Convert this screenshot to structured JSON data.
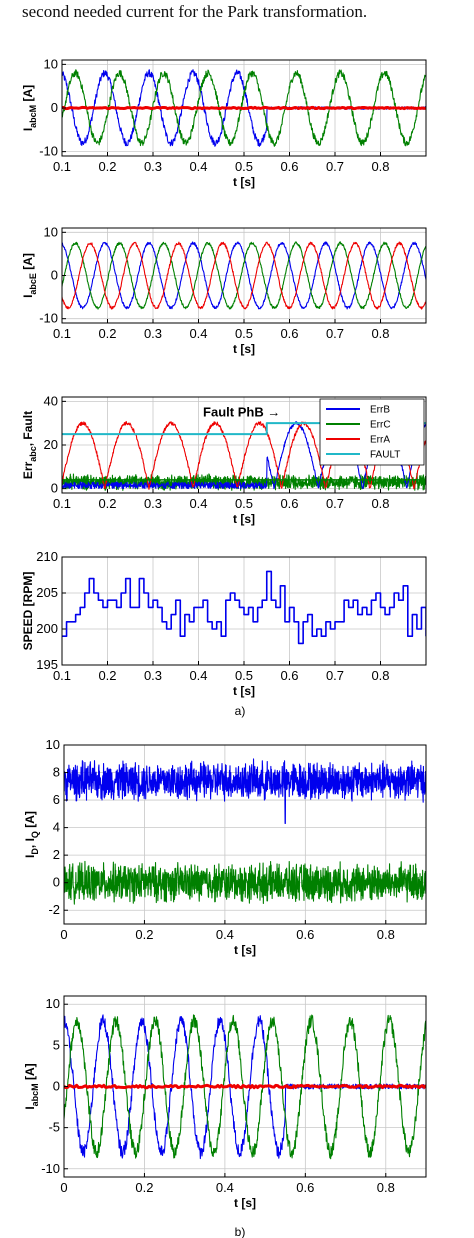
{
  "caption_top": "second needed current for the Park transformation.",
  "chart_data": [
    {
      "type": "line",
      "id": "p1",
      "ylabel": "I",
      "ylabel_sub": "abcM",
      "ylabel_unit": " [A]",
      "xlabel": "t [s]",
      "xlim": [
        0.1,
        0.9
      ],
      "ylim": [
        -11,
        11
      ],
      "xticks": [
        0.1,
        0.2,
        0.3,
        0.4,
        0.5,
        0.6,
        0.7,
        0.8
      ],
      "xticklabels": [
        "0.1",
        "0.2",
        "0.3",
        "0.4",
        "0.5",
        "0.6",
        "0.7",
        "0.8"
      ],
      "yticks": [
        -10,
        0,
        10
      ],
      "yticklabels": [
        "-10",
        "0",
        "10"
      ],
      "grid": true,
      "series": [
        {
          "color": "#0000ee",
          "kind": "sine",
          "amp": 8,
          "freq": 10.3,
          "phase": 90,
          "noise": 0.8,
          "until": 0.55,
          "after": 0
        },
        {
          "color": "#008000",
          "kind": "sine",
          "amp": 8,
          "freq": 10.3,
          "phase": -30,
          "noise": 0.8
        },
        {
          "color": "#ee0000",
          "kind": "const",
          "value": 0,
          "width": 3
        }
      ]
    },
    {
      "type": "line",
      "id": "p2",
      "ylabel": "I",
      "ylabel_sub": "abcE",
      "ylabel_unit": " [A]",
      "xlabel": "t [s]",
      "xlim": [
        0.1,
        0.9
      ],
      "ylim": [
        -11,
        11
      ],
      "xticks": [
        0.1,
        0.2,
        0.3,
        0.4,
        0.5,
        0.6,
        0.7,
        0.8
      ],
      "xticklabels": [
        "0.1",
        "0.2",
        "0.3",
        "0.4",
        "0.5",
        "0.6",
        "0.7",
        "0.8"
      ],
      "yticks": [
        -10,
        0,
        10
      ],
      "yticklabels": [
        "-10",
        "0",
        "10"
      ],
      "grid": true,
      "series": [
        {
          "color": "#0000ee",
          "kind": "sine",
          "amp": 7.5,
          "freq": 10.3,
          "phase": 90,
          "noise": 0.3
        },
        {
          "color": "#008000",
          "kind": "sine",
          "amp": 7.5,
          "freq": 10.3,
          "phase": -30,
          "noise": 0.3
        },
        {
          "color": "#ee0000",
          "kind": "sine",
          "amp": 7.5,
          "freq": 10.3,
          "phase": 210,
          "noise": 0.3
        }
      ]
    },
    {
      "type": "line",
      "id": "p3",
      "ylabel": "Err",
      "ylabel_sub": "abc",
      "ylabel_unit": ", Fault",
      "xlabel": "t [s]",
      "xlim": [
        0.1,
        0.9
      ],
      "ylim": [
        -2,
        42
      ],
      "xticks": [
        0.1,
        0.2,
        0.3,
        0.4,
        0.5,
        0.6,
        0.7,
        0.8
      ],
      "xticklabels": [
        "0.1",
        "0.2",
        "0.3",
        "0.4",
        "0.5",
        "0.6",
        "0.7",
        "0.8"
      ],
      "yticks": [
        0,
        20,
        40
      ],
      "yticklabels": [
        "0",
        "20",
        "40"
      ],
      "grid": true,
      "annotation": {
        "text": "Fault PhB →",
        "x": 0.41,
        "y": 33
      },
      "legend": {
        "position": "top-right",
        "entries": [
          {
            "label": "ErrB",
            "color": "#0000ee"
          },
          {
            "label": "ErrC",
            "color": "#008000"
          },
          {
            "label": "ErrA",
            "color": "#ee0000"
          },
          {
            "label": "FAULT",
            "color": "#20b8c8"
          }
        ]
      },
      "series": [
        {
          "color": "#008000",
          "kind": "noise",
          "base": 3,
          "spread": 4
        },
        {
          "color": "#0000ee",
          "kind": "rect_sine",
          "amp": 30,
          "freq": 20.6,
          "phase": 30,
          "from": 0.55,
          "pre_noise": 3
        },
        {
          "color": "#ee0000",
          "kind": "rect_sine",
          "amp": 30,
          "freq": 20.6,
          "phase": 0,
          "noise": 0.8
        },
        {
          "color": "#20b8c8",
          "kind": "step",
          "before": 25,
          "after": 30,
          "at": 0.55,
          "width": 2
        },
        {
          "color": "#008000",
          "kind": "step",
          "before": 4,
          "after": 4,
          "at": 0.55,
          "width": 1.5
        }
      ]
    },
    {
      "type": "line",
      "id": "p4",
      "ylabel": "SPEED [RPM]",
      "ylabel_sub": "",
      "ylabel_unit": "",
      "xlabel": "t [s]",
      "xlim": [
        0.1,
        0.9
      ],
      "ylim": [
        195,
        210
      ],
      "xticks": [
        0.1,
        0.2,
        0.3,
        0.4,
        0.5,
        0.6,
        0.7,
        0.8
      ],
      "xticklabels": [
        "0.1",
        "0.2",
        "0.3",
        "0.4",
        "0.5",
        "0.6",
        "0.7",
        "0.8"
      ],
      "yticks": [
        195,
        200,
        205,
        210
      ],
      "yticklabels": [
        "195",
        "200",
        "205",
        "210"
      ],
      "grid": true,
      "series": [
        {
          "color": "#0000ee",
          "kind": "stairs",
          "width": 1.6,
          "x": [
            0.1,
            0.11,
            0.12,
            0.13,
            0.14,
            0.15,
            0.16,
            0.17,
            0.18,
            0.19,
            0.2,
            0.21,
            0.22,
            0.23,
            0.24,
            0.25,
            0.26,
            0.27,
            0.28,
            0.29,
            0.3,
            0.31,
            0.32,
            0.33,
            0.34,
            0.35,
            0.36,
            0.37,
            0.38,
            0.39,
            0.4,
            0.41,
            0.42,
            0.43,
            0.44,
            0.45,
            0.46,
            0.47,
            0.48,
            0.49,
            0.5,
            0.51,
            0.52,
            0.53,
            0.54,
            0.55,
            0.56,
            0.57,
            0.58,
            0.59,
            0.6,
            0.61,
            0.62,
            0.63,
            0.64,
            0.65,
            0.66,
            0.67,
            0.68,
            0.69,
            0.7,
            0.71,
            0.72,
            0.73,
            0.74,
            0.75,
            0.76,
            0.77,
            0.78,
            0.79,
            0.8,
            0.81,
            0.82,
            0.83,
            0.84,
            0.85,
            0.86,
            0.87,
            0.88,
            0.89,
            0.9
          ],
          "y": [
            199,
            201,
            201,
            202,
            203,
            205,
            207,
            205,
            204,
            203,
            204,
            204,
            203,
            205,
            207,
            203,
            203,
            207,
            205,
            203,
            204,
            203,
            201,
            200,
            202,
            204,
            199,
            202,
            201,
            203,
            203,
            204,
            201,
            200,
            201,
            199,
            204,
            205,
            204,
            203,
            202,
            203,
            201,
            203,
            204,
            208,
            204,
            203,
            206,
            201,
            203,
            201,
            198,
            201,
            202,
            199,
            200,
            199,
            201,
            200,
            201,
            201,
            204,
            203,
            204,
            202,
            203,
            202,
            204,
            205,
            203,
            202,
            203,
            205,
            204,
            206,
            199,
            202,
            200,
            203,
            199
          ]
        }
      ]
    },
    {
      "type": "line",
      "id": "p5",
      "ylabel": "I",
      "ylabel_sub": "D",
      "ylabel_unit": ", I",
      "ylabel_sub2": "Q",
      "ylabel_unit2": " [A]",
      "xlabel": "t [s]",
      "xlim": [
        0,
        0.9
      ],
      "ylim": [
        -3,
        10
      ],
      "xticks": [
        0,
        0.2,
        0.4,
        0.6,
        0.8
      ],
      "xticklabels": [
        "0",
        "0.2",
        "0.4",
        "0.6",
        "0.8"
      ],
      "yticks": [
        -2,
        0,
        2,
        4,
        6,
        8,
        10
      ],
      "yticklabels": [
        "-2",
        "0",
        "2",
        "4",
        "6",
        "8",
        "10"
      ],
      "grid": true,
      "series": [
        {
          "color": "#0000ee",
          "kind": "noise",
          "base": 7.4,
          "spread": 1.6,
          "spike": {
            "x": 0.55,
            "y": 4.3
          }
        },
        {
          "color": "#008000",
          "kind": "noise",
          "base": 0,
          "spread": 1.6
        }
      ]
    },
    {
      "type": "line",
      "id": "p6",
      "ylabel": "I",
      "ylabel_sub": "abcM",
      "ylabel_unit": " [A]",
      "xlabel": "t [s]",
      "xlim": [
        0,
        0.9
      ],
      "ylim": [
        -11,
        11
      ],
      "xticks": [
        0,
        0.2,
        0.4,
        0.6,
        0.8
      ],
      "xticklabels": [
        "0",
        "0.2",
        "0.4",
        "0.6",
        "0.8"
      ],
      "yticks": [
        -10,
        -5,
        0,
        5,
        10
      ],
      "yticklabels": [
        "-10",
        "-5",
        "0",
        "5",
        "10"
      ],
      "grid": true,
      "series": [
        {
          "color": "#0000ee",
          "kind": "sine",
          "amp": 8,
          "freq": 10.3,
          "phase": 90,
          "noise": 0.8,
          "until": 0.55,
          "after": 0
        },
        {
          "color": "#008000",
          "kind": "sine",
          "amp": 8,
          "freq": 10.3,
          "phase": -30,
          "noise": 0.8
        },
        {
          "color": "#ee0000",
          "kind": "const",
          "value": 0,
          "width": 3
        }
      ]
    }
  ],
  "captions": [
    "a)",
    "b)"
  ]
}
